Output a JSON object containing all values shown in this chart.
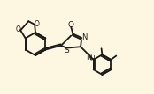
{
  "bg_color": "#fdf6e0",
  "line_color": "#1a1a1a",
  "lw": 1.3,
  "figsize": [
    1.74,
    1.07
  ],
  "dpi": 100,
  "xlim": [
    0,
    10
  ],
  "ylim": [
    0,
    6
  ]
}
